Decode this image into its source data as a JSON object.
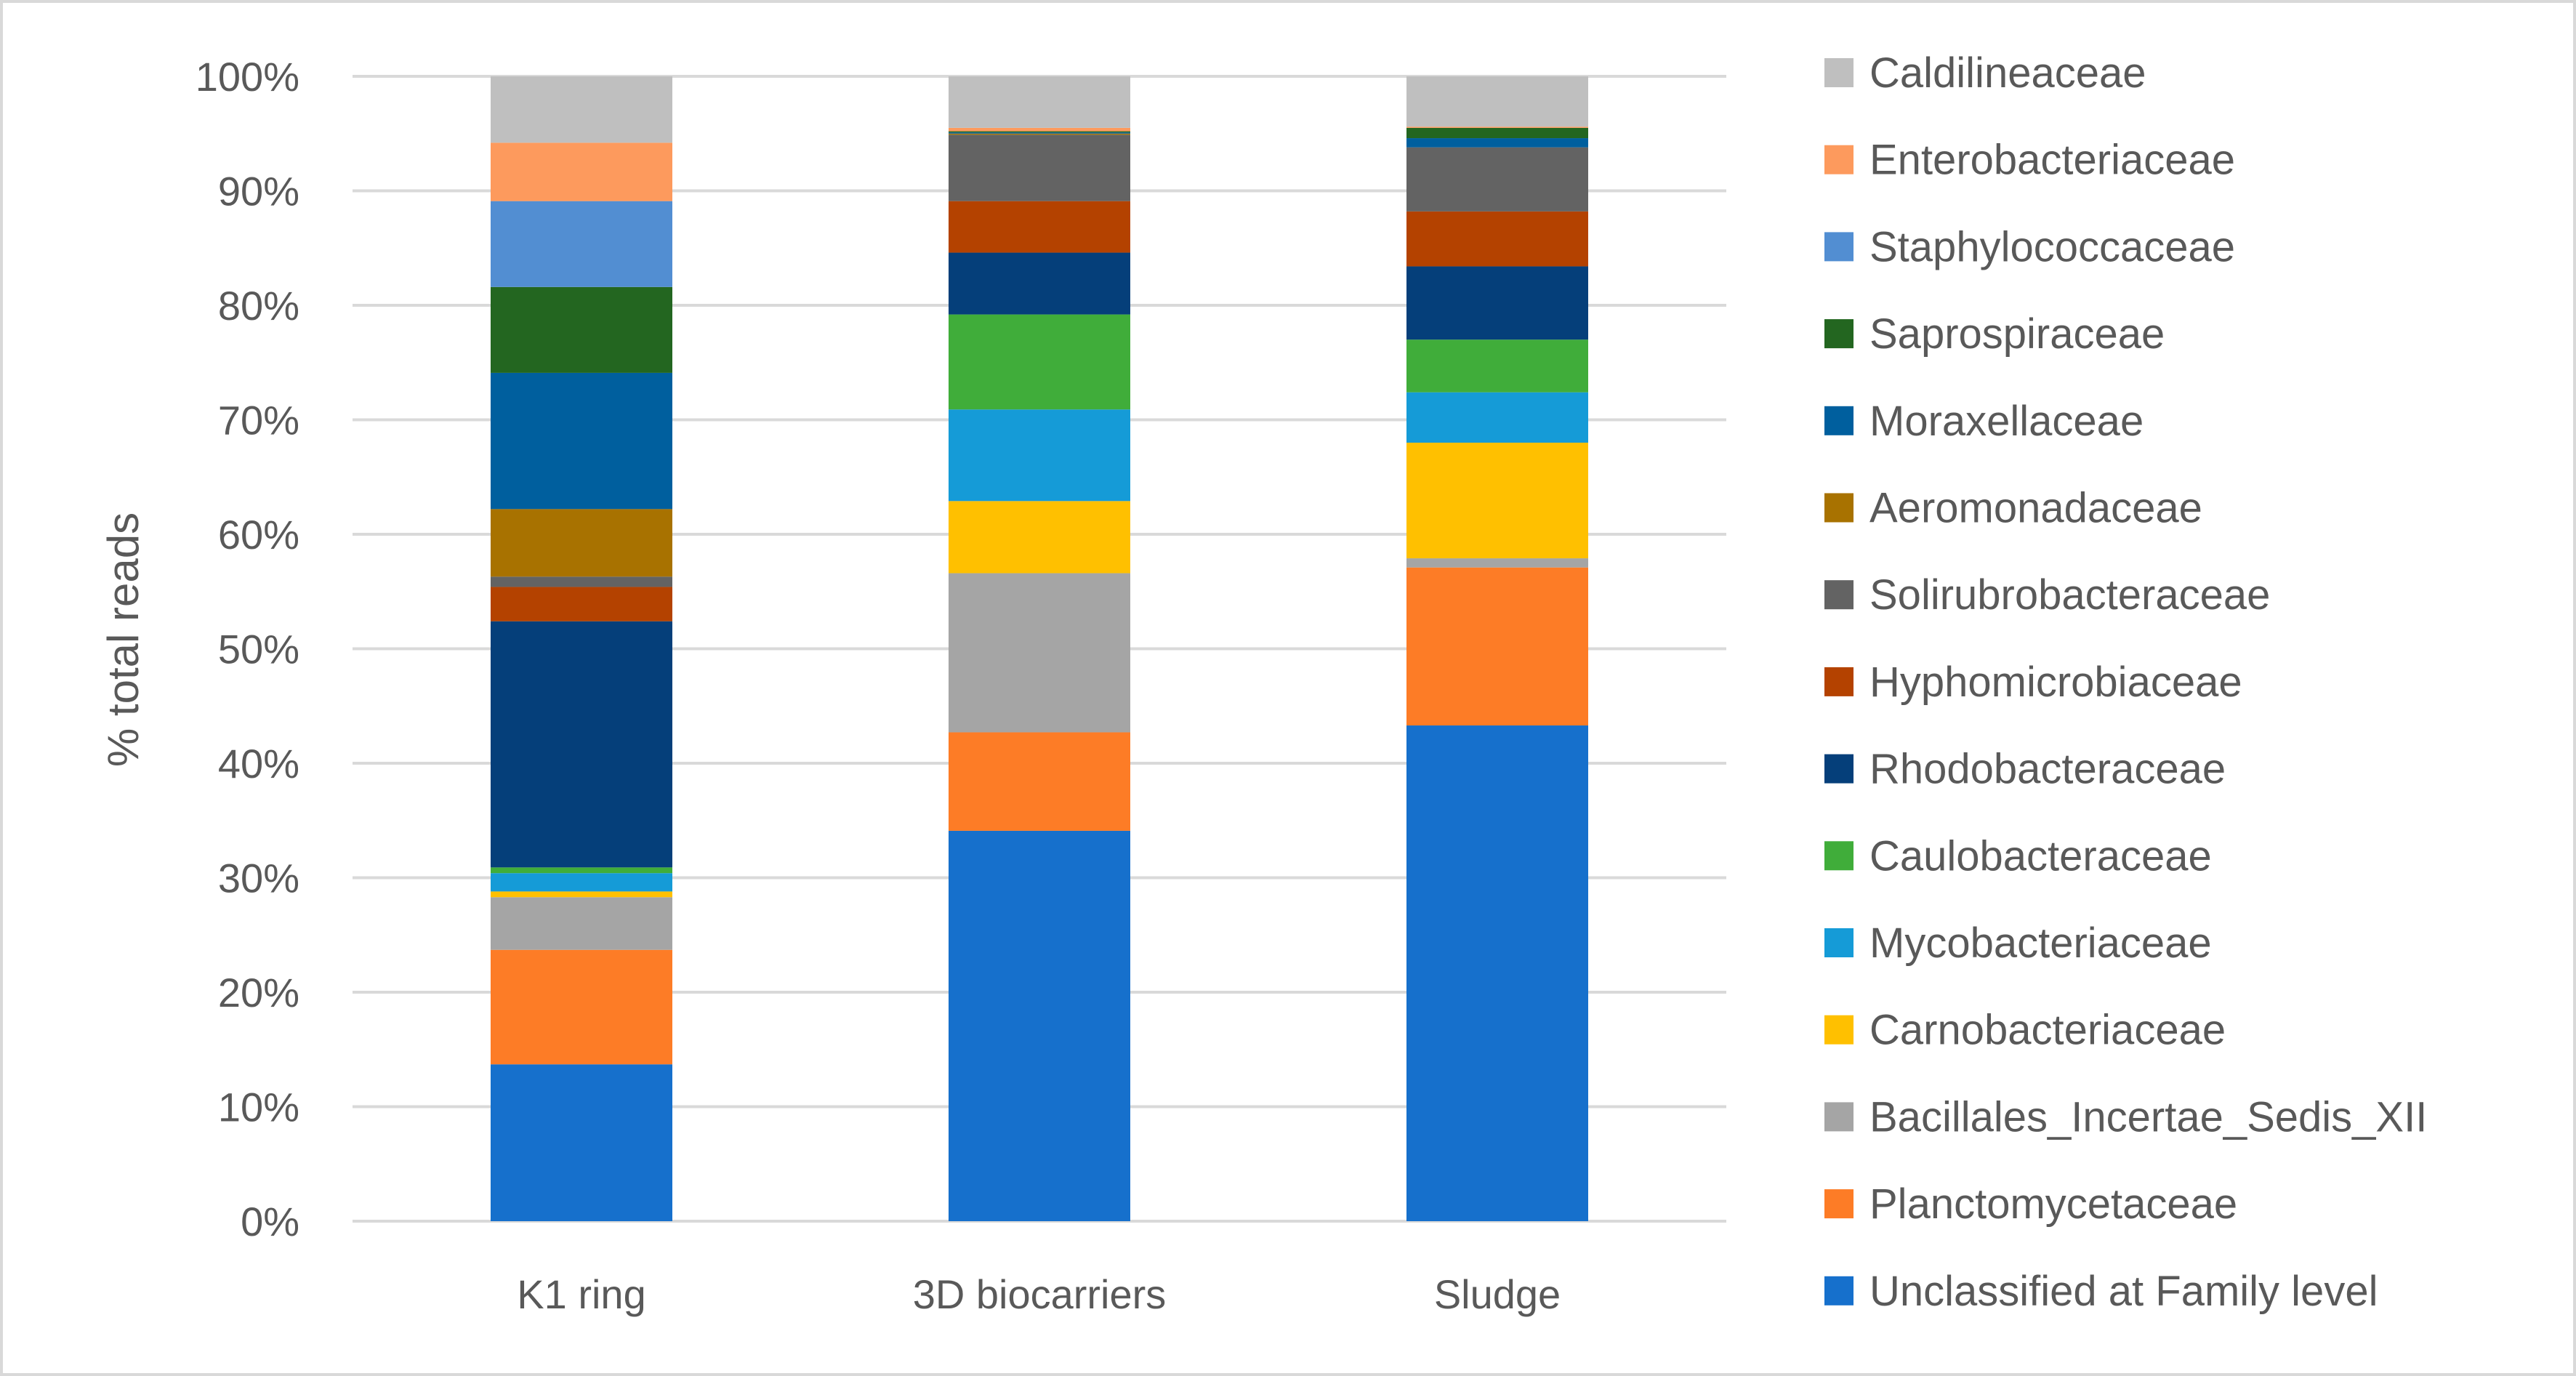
{
  "chart_data": {
    "type": "bar",
    "stacked": "percent",
    "title": "",
    "xlabel": "",
    "ylabel": "% total reads",
    "ylim": [
      0,
      100
    ],
    "yticks": [
      "0%",
      "10%",
      "20%",
      "30%",
      "40%",
      "50%",
      "60%",
      "70%",
      "80%",
      "90%",
      "100%"
    ],
    "grid": true,
    "legend_position": "right",
    "categories": [
      "K1 ring",
      "3D biocarriers",
      "Sludge"
    ],
    "series": [
      {
        "name": "Unclassified at Family level",
        "color": "#1670cc",
        "values": [
          13.7,
          34.1,
          43.3
        ]
      },
      {
        "name": "Planctomycetaceae",
        "color": "#fd7c26",
        "values": [
          10.0,
          8.6,
          13.8
        ]
      },
      {
        "name": "Bacillales_Incertae_Sedis_XII",
        "color": "#a5a5a5",
        "values": [
          4.6,
          13.9,
          0.8
        ]
      },
      {
        "name": "Carnobacteriaceae",
        "color": "#ffc000",
        "values": [
          0.5,
          6.3,
          10.1
        ]
      },
      {
        "name": "Mycobacteriaceae",
        "color": "#159bd7",
        "values": [
          1.6,
          8.0,
          4.4
        ]
      },
      {
        "name": "Caulobacteraceae",
        "color": "#40ad3a",
        "values": [
          0.5,
          8.3,
          4.6
        ]
      },
      {
        "name": "Rhodobacteraceae",
        "color": "#053f7a",
        "values": [
          21.5,
          5.4,
          6.4
        ]
      },
      {
        "name": "Hyphomicrobiaceae",
        "color": "#b44200",
        "values": [
          3.0,
          4.5,
          4.8
        ]
      },
      {
        "name": "Solirubrobacteraceae",
        "color": "#636363",
        "values": [
          0.9,
          5.8,
          5.6
        ]
      },
      {
        "name": "Aeromonadaceae",
        "color": "#a87200",
        "values": [
          5.9,
          0.1,
          0.0
        ]
      },
      {
        "name": "Moraxellaceae",
        "color": "#005f9e",
        "values": [
          11.9,
          0.1,
          0.8
        ]
      },
      {
        "name": "Saprospiraceae",
        "color": "#236620",
        "values": [
          7.5,
          0.1,
          0.9
        ]
      },
      {
        "name": "Staphylococcaceae",
        "color": "#528ed2",
        "values": [
          7.5,
          0.0,
          0.0
        ]
      },
      {
        "name": "Enterobacteriaceae",
        "color": "#fd9a5d",
        "values": [
          5.1,
          0.3,
          0.1
        ]
      },
      {
        "name": "Caldilineaceae",
        "color": "#bfbfbf",
        "values": [
          5.8,
          4.5,
          4.4
        ]
      }
    ]
  }
}
